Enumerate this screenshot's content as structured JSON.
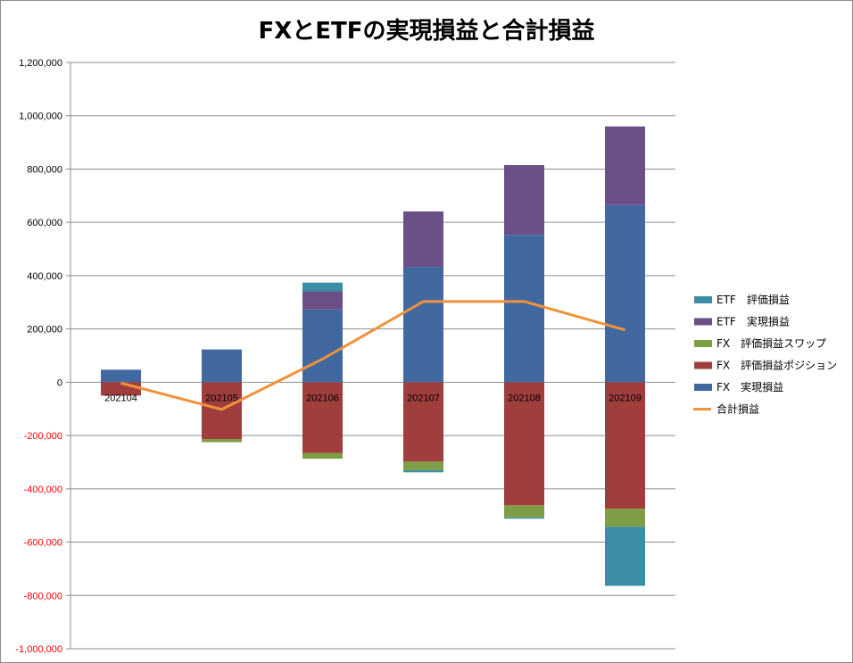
{
  "chart_data": {
    "type": "bar",
    "title": "FXとETFの実現損益と合計損益",
    "categories": [
      "202104",
      "202105",
      "202106",
      "202107",
      "202108",
      "202109"
    ],
    "ylim": [
      -1000000,
      1200000
    ],
    "yticks": [
      "1,200,000",
      "1,000,000",
      "800,000",
      "600,000",
      "400,000",
      "200,000",
      "0",
      "-200,000",
      "-400,000",
      "-600,000",
      "-800,000",
      "-1,000,000"
    ],
    "ytick_values": [
      1200000,
      1000000,
      800000,
      600000,
      400000,
      200000,
      0,
      -200000,
      -400000,
      -600000,
      -800000,
      -1000000
    ],
    "grid": true,
    "stacked": true,
    "legend_position": "right",
    "series": [
      {
        "name": "FX　実現損益",
        "kind": "bar",
        "color": "#4169a0",
        "values": [
          47000,
          123000,
          273000,
          433000,
          553000,
          665000
        ]
      },
      {
        "name": "FX　評価損益ポジション",
        "kind": "bar",
        "color": "#a03e3e",
        "values": [
          -50000,
          -213000,
          -265000,
          -298000,
          -462000,
          -475000
        ]
      },
      {
        "name": "FX　評価損益スワップ",
        "kind": "bar",
        "color": "#7f9d45",
        "values": [
          0,
          -12000,
          -22000,
          -32000,
          -45000,
          -67000
        ]
      },
      {
        "name": "ETF　実現損益",
        "kind": "bar",
        "color": "#6b5087",
        "values": [
          0,
          0,
          68000,
          208000,
          262000,
          295000
        ]
      },
      {
        "name": "ETF　評価損益",
        "kind": "bar",
        "color": "#3b8ea5",
        "values": [
          0,
          0,
          33000,
          -8000,
          -5000,
          -222000
        ]
      },
      {
        "name": "合計損益",
        "kind": "line",
        "color": "#f0923a",
        "values": [
          -3000,
          -102000,
          87000,
          303000,
          303000,
          196000
        ]
      }
    ],
    "legend_order": [
      "ETF　評価損益",
      "ETF　実現損益",
      "FX　評価損益スワップ",
      "FX　評価損益ポジション",
      "FX　実現損益",
      "合計損益"
    ],
    "negative_tick_color": "#ff0000"
  }
}
